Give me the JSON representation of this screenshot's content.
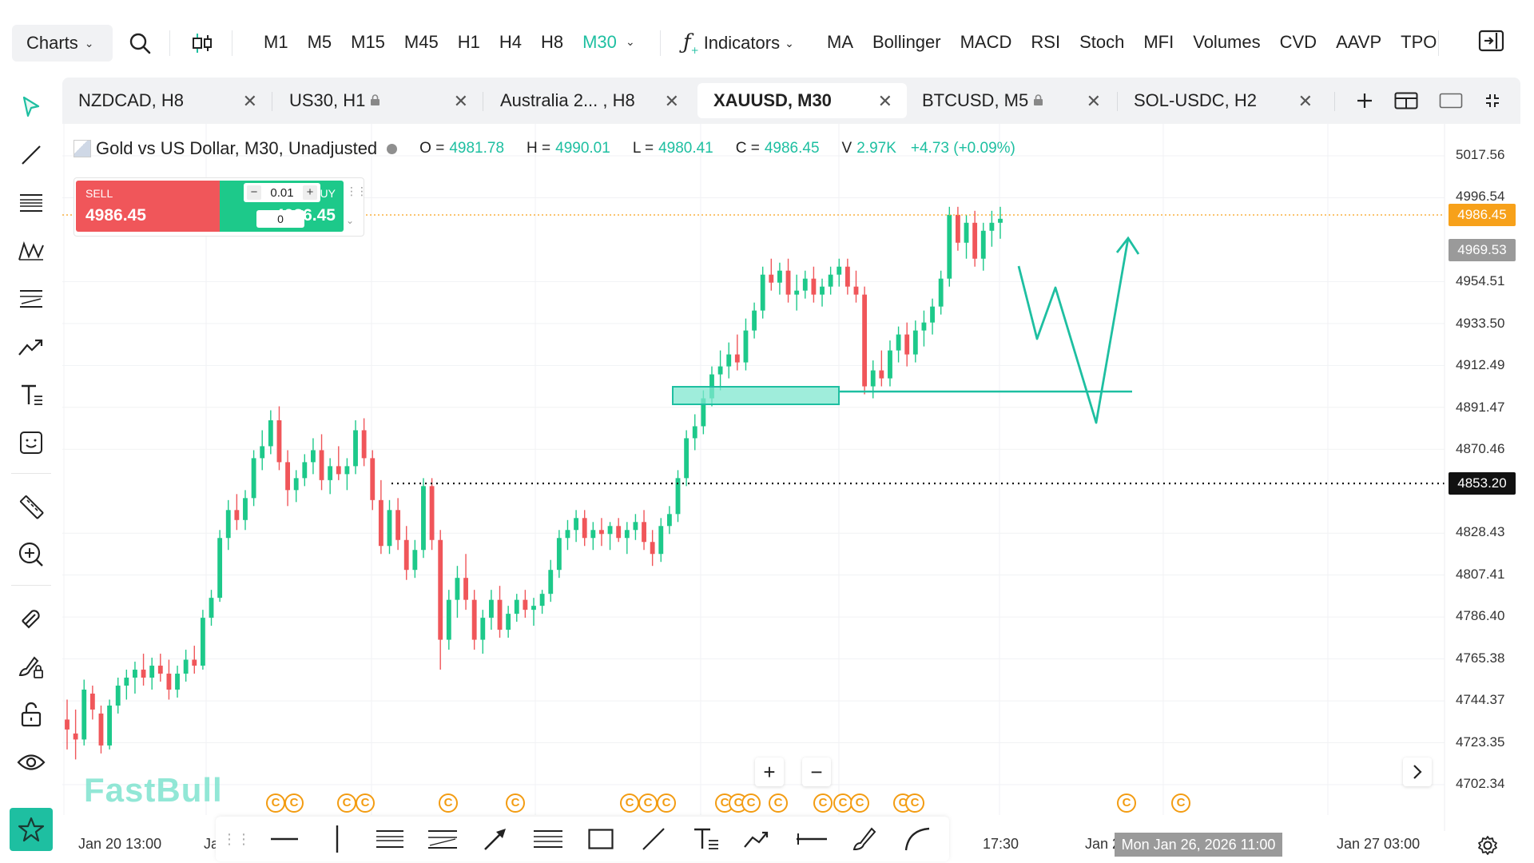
{
  "toolbar": {
    "charts_label": "Charts",
    "timeframes": [
      "M1",
      "M5",
      "M15",
      "M45",
      "H1",
      "H4",
      "H8",
      "M30"
    ],
    "active_timeframe": "M30",
    "indicators_label": "Indicators",
    "indicator_shortcuts": [
      "MA",
      "Bollinger",
      "MACD",
      "RSI",
      "Stoch",
      "MFI",
      "Volumes",
      "CVD",
      "AAVP",
      "TPO"
    ]
  },
  "tabs": [
    {
      "label": "NZDCAD, H8",
      "locked": false
    },
    {
      "label": "US30, H1",
      "locked": true
    },
    {
      "label": "Australia 2... , H8",
      "locked": false
    },
    {
      "label": "XAUUSD, M30",
      "locked": false,
      "active": true
    },
    {
      "label": "BTCUSD, M5",
      "locked": true
    },
    {
      "label": "SOL-USDC, H2",
      "locked": false
    }
  ],
  "legend": {
    "title": "Gold vs US Dollar, M30, Unadjusted",
    "o_label": "O =",
    "o": "4981.78",
    "h_label": "H =",
    "h": "4990.01",
    "l_label": "L =",
    "l": "4980.41",
    "c_label": "C =",
    "c": "4986.45",
    "v_label": "V",
    "v": "2.97K",
    "change": "+4.73 (+0.09%)"
  },
  "trade": {
    "sell_label": "SELL",
    "sell_price": "4986.45",
    "buy_label": "BUY",
    "buy_price": "4986.45",
    "lot": "0.01",
    "qty": "0"
  },
  "price_axis": [
    "5017.56",
    "4996.54",
    "4954.51",
    "4933.50",
    "4912.49",
    "4891.47",
    "4870.46",
    "4828.43",
    "4807.41",
    "4786.40",
    "4765.38",
    "4744.37",
    "4723.35",
    "4702.34"
  ],
  "price_tags": {
    "current": "4986.45",
    "current_color": "#f7a11a",
    "prev": "4969.53",
    "prev_color": "#9a9a9a",
    "crosshair": "4853.20",
    "crosshair_color": "#111111"
  },
  "time_axis": [
    "Jan 20 13:00",
    "Ja",
    "17:30",
    "Jan 2",
    "Jan 27 03:00"
  ],
  "crosshair_time": "Mon Jan 26, 2026 11:00",
  "watermark": "FastBull",
  "colors": {
    "up": "#1dc98a",
    "down": "#f0565a",
    "accent": "#1ebfa1",
    "event": "#f39c12"
  },
  "event_marker_glyph": "C",
  "candles": [
    [
      4735,
      4745,
      4720,
      4730
    ],
    [
      4728,
      4740,
      4715,
      4725
    ],
    [
      4725,
      4755,
      4722,
      4750
    ],
    [
      4748,
      4752,
      4735,
      4740
    ],
    [
      4738,
      4742,
      4718,
      4722
    ],
    [
      4722,
      4745,
      4720,
      4742
    ],
    [
      4742,
      4756,
      4738,
      4752
    ],
    [
      4752,
      4760,
      4745,
      4756
    ],
    [
      4756,
      4764,
      4748,
      4760
    ],
    [
      4760,
      4768,
      4752,
      4756
    ],
    [
      4756,
      4766,
      4750,
      4762
    ],
    [
      4762,
      4768,
      4754,
      4758
    ],
    [
      4758,
      4765,
      4745,
      4750
    ],
    [
      4750,
      4762,
      4746,
      4758
    ],
    [
      4758,
      4770,
      4754,
      4765
    ],
    [
      4765,
      4772,
      4758,
      4762
    ],
    [
      4762,
      4790,
      4760,
      4786
    ],
    [
      4786,
      4800,
      4782,
      4796
    ],
    [
      4796,
      4830,
      4794,
      4826
    ],
    [
      4826,
      4845,
      4820,
      4840
    ],
    [
      4840,
      4848,
      4830,
      4835
    ],
    [
      4835,
      4850,
      4830,
      4846
    ],
    [
      4846,
      4870,
      4842,
      4866
    ],
    [
      4866,
      4880,
      4860,
      4872
    ],
    [
      4872,
      4890,
      4868,
      4885
    ],
    [
      4885,
      4892,
      4860,
      4864
    ],
    [
      4864,
      4870,
      4842,
      4850
    ],
    [
      4850,
      4860,
      4844,
      4856
    ],
    [
      4856,
      4868,
      4852,
      4864
    ],
    [
      4864,
      4876,
      4858,
      4870
    ],
    [
      4870,
      4878,
      4850,
      4855
    ],
    [
      4855,
      4866,
      4848,
      4862
    ],
    [
      4862,
      4872,
      4855,
      4858
    ],
    [
      4858,
      4866,
      4850,
      4862
    ],
    [
      4862,
      4885,
      4858,
      4880
    ],
    [
      4880,
      4886,
      4862,
      4866
    ],
    [
      4866,
      4870,
      4840,
      4845
    ],
    [
      4845,
      4855,
      4818,
      4822
    ],
    [
      4822,
      4845,
      4818,
      4840
    ],
    [
      4840,
      4846,
      4820,
      4825
    ],
    [
      4825,
      4832,
      4805,
      4810
    ],
    [
      4810,
      4825,
      4806,
      4820
    ],
    [
      4820,
      4856,
      4816,
      4852
    ],
    [
      4852,
      4856,
      4820,
      4825
    ],
    [
      4825,
      4830,
      4760,
      4775
    ],
    [
      4775,
      4800,
      4770,
      4795
    ],
    [
      4795,
      4812,
      4786,
      4806
    ],
    [
      4806,
      4818,
      4790,
      4795
    ],
    [
      4795,
      4800,
      4770,
      4775
    ],
    [
      4775,
      4790,
      4768,
      4786
    ],
    [
      4786,
      4800,
      4780,
      4795
    ],
    [
      4795,
      4802,
      4776,
      4780
    ],
    [
      4780,
      4792,
      4776,
      4788
    ],
    [
      4788,
      4798,
      4784,
      4795
    ],
    [
      4795,
      4800,
      4786,
      4790
    ],
    [
      4790,
      4796,
      4782,
      4792
    ],
    [
      4792,
      4800,
      4788,
      4798
    ],
    [
      4798,
      4815,
      4794,
      4810
    ],
    [
      4810,
      4830,
      4806,
      4826
    ],
    [
      4826,
      4835,
      4820,
      4830
    ],
    [
      4830,
      4840,
      4824,
      4836
    ],
    [
      4836,
      4840,
      4822,
      4826
    ],
    [
      4826,
      4834,
      4820,
      4830
    ],
    [
      4830,
      4836,
      4822,
      4828
    ],
    [
      4828,
      4834,
      4820,
      4832
    ],
    [
      4832,
      4836,
      4824,
      4826
    ],
    [
      4826,
      4834,
      4818,
      4830
    ],
    [
      4830,
      4838,
      4825,
      4834
    ],
    [
      4834,
      4840,
      4820,
      4824
    ],
    [
      4824,
      4830,
      4812,
      4818
    ],
    [
      4818,
      4836,
      4814,
      4832
    ],
    [
      4832,
      4842,
      4828,
      4838
    ],
    [
      4838,
      4860,
      4834,
      4856
    ],
    [
      4856,
      4880,
      4852,
      4876
    ],
    [
      4876,
      4888,
      4870,
      4882
    ],
    [
      4882,
      4900,
      4878,
      4896
    ],
    [
      4896,
      4912,
      4892,
      4908
    ],
    [
      4908,
      4920,
      4900,
      4912
    ],
    [
      4912,
      4924,
      4906,
      4918
    ],
    [
      4918,
      4928,
      4910,
      4914
    ],
    [
      4914,
      4936,
      4910,
      4930
    ],
    [
      4930,
      4944,
      4926,
      4940
    ],
    [
      4940,
      4962,
      4936,
      4958
    ],
    [
      4958,
      4966,
      4950,
      4954
    ],
    [
      4954,
      4964,
      4948,
      4960
    ],
    [
      4960,
      4966,
      4944,
      4948
    ],
    [
      4948,
      4958,
      4940,
      4950
    ],
    [
      4950,
      4960,
      4946,
      4956
    ],
    [
      4956,
      4962,
      4944,
      4948
    ],
    [
      4948,
      4956,
      4942,
      4952
    ],
    [
      4952,
      4962,
      4948,
      4958
    ],
    [
      4958,
      4966,
      4952,
      4962
    ],
    [
      4962,
      4966,
      4948,
      4952
    ],
    [
      4952,
      4960,
      4944,
      4948
    ],
    [
      4948,
      4952,
      4898,
      4902
    ],
    [
      4902,
      4915,
      4896,
      4910
    ],
    [
      4910,
      4920,
      4902,
      4906
    ],
    [
      4906,
      4925,
      4902,
      4920
    ],
    [
      4920,
      4932,
      4914,
      4928
    ],
    [
      4928,
      4934,
      4912,
      4918
    ],
    [
      4918,
      4935,
      4914,
      4930
    ],
    [
      4930,
      4940,
      4922,
      4934
    ],
    [
      4934,
      4946,
      4928,
      4942
    ],
    [
      4942,
      4960,
      4938,
      4956
    ],
    [
      4956,
      4992,
      4952,
      4988
    ],
    [
      4988,
      4992,
      4970,
      4974
    ],
    [
      4974,
      4988,
      4966,
      4984
    ],
    [
      4984,
      4990,
      4962,
      4966
    ],
    [
      4966,
      4984,
      4960,
      4980
    ],
    [
      4980,
      4990,
      4972,
      4984
    ],
    [
      4984,
      4992,
      4976,
      4986
    ]
  ]
}
